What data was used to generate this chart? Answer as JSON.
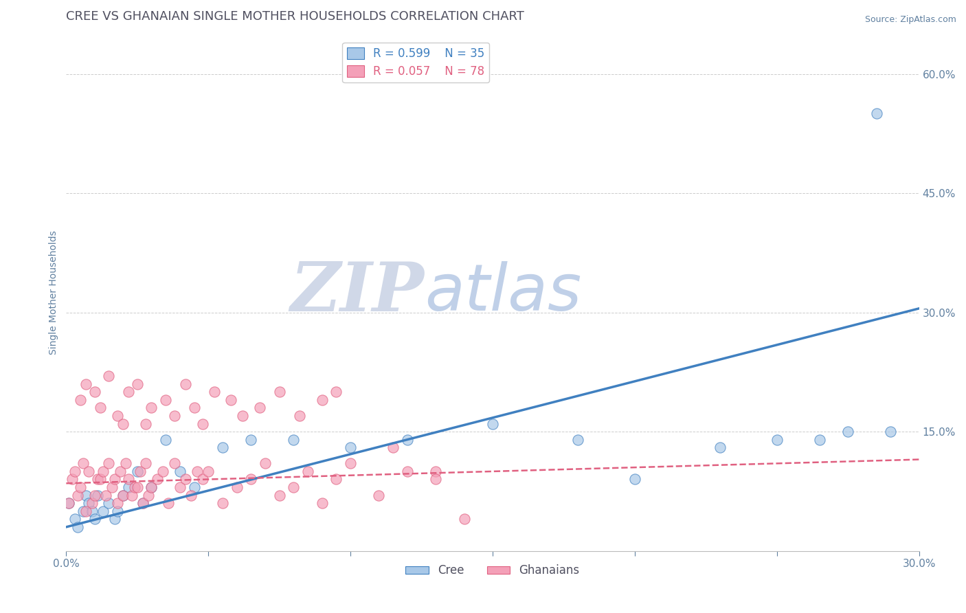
{
  "title": "CREE VS GHANAIAN SINGLE MOTHER HOUSEHOLDS CORRELATION CHART",
  "source_text": "Source: ZipAtlas.com",
  "ylabel": "Single Mother Households",
  "xlim": [
    0.0,
    0.3
  ],
  "ylim": [
    0.0,
    0.65
  ],
  "xticks": [
    0.0,
    0.05,
    0.1,
    0.15,
    0.2,
    0.25,
    0.3
  ],
  "yticks": [
    0.0,
    0.15,
    0.3,
    0.45,
    0.6
  ],
  "yticklabels": [
    "",
    "15.0%",
    "30.0%",
    "45.0%",
    "60.0%"
  ],
  "cree_color": "#a8c8e8",
  "ghanaian_color": "#f4a0b8",
  "cree_line_color": "#4080c0",
  "ghanaian_line_color": "#e06080",
  "background_color": "#ffffff",
  "legend_R_cree": "R = 0.599",
  "legend_N_cree": "N = 35",
  "legend_R_ghana": "R = 0.057",
  "legend_N_ghana": "N = 78",
  "cree_scatter_x": [
    0.001,
    0.003,
    0.004,
    0.006,
    0.007,
    0.008,
    0.009,
    0.01,
    0.011,
    0.013,
    0.015,
    0.017,
    0.018,
    0.02,
    0.022,
    0.025,
    0.027,
    0.03,
    0.035,
    0.04,
    0.045,
    0.055,
    0.065,
    0.08,
    0.1,
    0.12,
    0.15,
    0.18,
    0.2,
    0.23,
    0.25,
    0.265,
    0.275,
    0.285,
    0.29
  ],
  "cree_scatter_y": [
    0.06,
    0.04,
    0.03,
    0.05,
    0.07,
    0.06,
    0.05,
    0.04,
    0.07,
    0.05,
    0.06,
    0.04,
    0.05,
    0.07,
    0.08,
    0.1,
    0.06,
    0.08,
    0.14,
    0.1,
    0.08,
    0.13,
    0.14,
    0.14,
    0.13,
    0.14,
    0.16,
    0.14,
    0.09,
    0.13,
    0.14,
    0.14,
    0.15,
    0.55,
    0.15
  ],
  "ghana_scatter_x": [
    0.001,
    0.002,
    0.003,
    0.004,
    0.005,
    0.006,
    0.007,
    0.008,
    0.009,
    0.01,
    0.011,
    0.012,
    0.013,
    0.014,
    0.015,
    0.016,
    0.017,
    0.018,
    0.019,
    0.02,
    0.021,
    0.022,
    0.023,
    0.024,
    0.025,
    0.026,
    0.027,
    0.028,
    0.029,
    0.03,
    0.032,
    0.034,
    0.036,
    0.038,
    0.04,
    0.042,
    0.044,
    0.046,
    0.048,
    0.05,
    0.055,
    0.06,
    0.065,
    0.07,
    0.075,
    0.08,
    0.085,
    0.09,
    0.095,
    0.1,
    0.11,
    0.12,
    0.005,
    0.007,
    0.01,
    0.012,
    0.015,
    0.018,
    0.02,
    0.022,
    0.025,
    0.028,
    0.03,
    0.035,
    0.038,
    0.042,
    0.045,
    0.048,
    0.052,
    0.058,
    0.062,
    0.068,
    0.075,
    0.082,
    0.09,
    0.095,
    0.13,
    0.14,
    0.13,
    0.115
  ],
  "ghana_scatter_y": [
    0.06,
    0.09,
    0.1,
    0.07,
    0.08,
    0.11,
    0.05,
    0.1,
    0.06,
    0.07,
    0.09,
    0.09,
    0.1,
    0.07,
    0.11,
    0.08,
    0.09,
    0.06,
    0.1,
    0.07,
    0.11,
    0.09,
    0.07,
    0.08,
    0.08,
    0.1,
    0.06,
    0.11,
    0.07,
    0.08,
    0.09,
    0.1,
    0.06,
    0.11,
    0.08,
    0.09,
    0.07,
    0.1,
    0.09,
    0.1,
    0.06,
    0.08,
    0.09,
    0.11,
    0.07,
    0.08,
    0.1,
    0.06,
    0.09,
    0.11,
    0.07,
    0.1,
    0.19,
    0.21,
    0.2,
    0.18,
    0.22,
    0.17,
    0.16,
    0.2,
    0.21,
    0.16,
    0.18,
    0.19,
    0.17,
    0.21,
    0.18,
    0.16,
    0.2,
    0.19,
    0.17,
    0.18,
    0.2,
    0.17,
    0.19,
    0.2,
    0.1,
    0.04,
    0.09,
    0.13
  ],
  "cree_trend_x": [
    0.0,
    0.3
  ],
  "cree_trend_y": [
    0.03,
    0.305
  ],
  "ghana_trend_x": [
    0.0,
    0.3
  ],
  "ghana_trend_y": [
    0.085,
    0.115
  ],
  "grid_color": "#cccccc",
  "title_color": "#505060",
  "axis_label_color": "#6080a0",
  "tick_color": "#6080a0",
  "watermark_ZIP_color": "#d0d8e8",
  "watermark_atlas_color": "#c0d0e8",
  "title_fontsize": 13,
  "axis_label_fontsize": 10,
  "tick_fontsize": 11
}
